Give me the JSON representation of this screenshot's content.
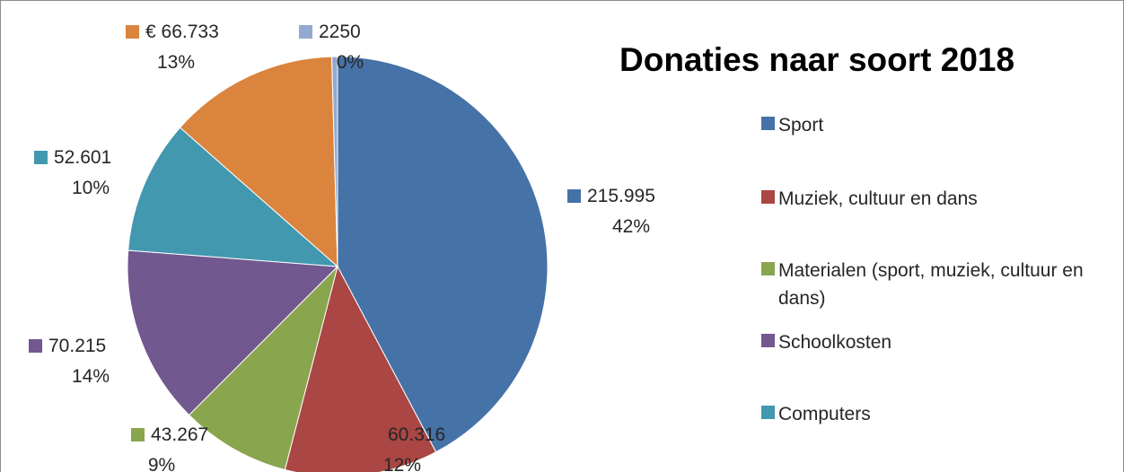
{
  "chart_data": {
    "type": "pie",
    "title": "Donaties naar soort 2018",
    "slices": [
      {
        "legend": "Sport",
        "value": 215995,
        "value_label": "215.995",
        "percent_label": "42%",
        "color": "#4572a7"
      },
      {
        "legend": "Muziek, cultuur en dans",
        "value": 60316,
        "value_label": "60.316",
        "percent_label": "12%",
        "color": "#aa4643"
      },
      {
        "legend": "Materialen (sport, muziek, cultuur en dans)",
        "value": 43267,
        "value_label": "43.267",
        "percent_label": "9%",
        "color": "#89a54e"
      },
      {
        "legend": "Schoolkosten",
        "value": 70215,
        "value_label": "70.215",
        "percent_label": "14%",
        "color": "#71588f"
      },
      {
        "legend": "Computers",
        "value": 52601,
        "value_label": "52.601",
        "percent_label": "10%",
        "color": "#4198af"
      },
      {
        "legend": "",
        "value": 66733,
        "value_label": "€ 66.733",
        "percent_label": "13%",
        "color": "#db843d"
      },
      {
        "legend": "",
        "value": 2250,
        "value_label": "2250",
        "percent_label": "0%",
        "color": "#93a9cf"
      }
    ],
    "legend_position": "right"
  }
}
